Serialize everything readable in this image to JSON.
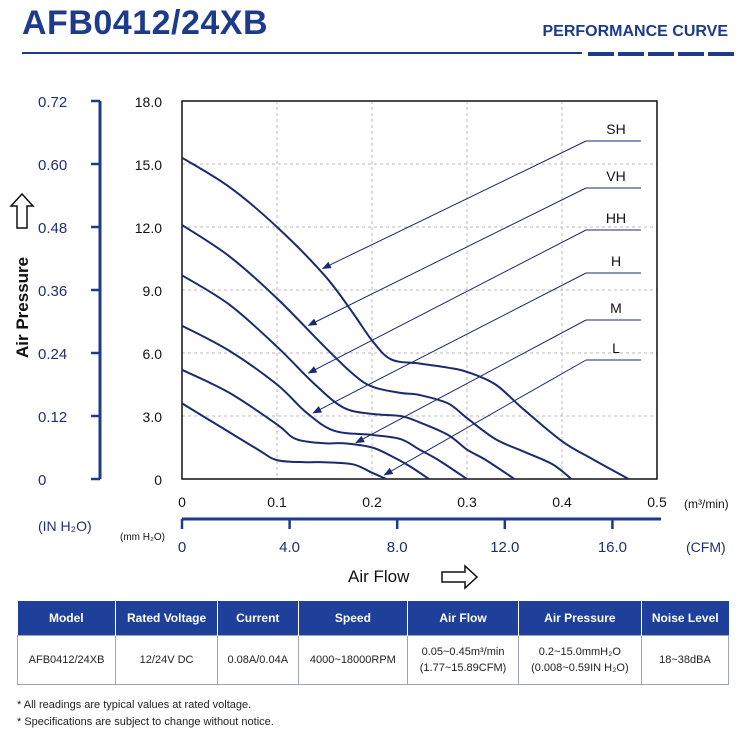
{
  "header": {
    "title": "AFB0412/24XB",
    "subtitle": "PERFORMANCE CURVE"
  },
  "chart_data": {
    "type": "line",
    "xlabel": "Air Flow",
    "ylabel": "Air Pressure",
    "x_unit": "(m³/min)",
    "x2_unit": "(CFM)",
    "y_unit": "(mm H₂O)",
    "y2_unit": "(IN H₂O)",
    "xlim": [
      0,
      0.5
    ],
    "ylim": [
      0,
      18
    ],
    "grid": true,
    "x_ticks": [
      "0",
      "0.1",
      "0.2",
      "0.3",
      "0.4",
      "0.5"
    ],
    "y_ticks": [
      "0",
      "3.0",
      "6.0",
      "9.0",
      "12.0",
      "15.0",
      "18.0"
    ],
    "x2_ticks": [
      "0",
      "4.0",
      "8.0",
      "12.0",
      "16.0"
    ],
    "y2_ticks": [
      "0",
      "0.12",
      "0.24",
      "0.36",
      "0.48",
      "0.60",
      "0.72"
    ],
    "series": [
      {
        "name": "SH",
        "x": [
          0,
          0.05,
          0.1,
          0.15,
          0.18,
          0.2,
          0.22,
          0.25,
          0.28,
          0.3,
          0.33,
          0.36,
          0.4,
          0.43,
          0.47
        ],
        "y": [
          15.3,
          13.9,
          12.0,
          9.7,
          7.9,
          6.6,
          5.7,
          5.5,
          5.3,
          5.1,
          4.5,
          3.3,
          1.8,
          1.0,
          0
        ]
      },
      {
        "name": "VH",
        "x": [
          0,
          0.05,
          0.1,
          0.15,
          0.18,
          0.2,
          0.23,
          0.25,
          0.28,
          0.3,
          0.33,
          0.36,
          0.39,
          0.41
        ],
        "y": [
          12.1,
          10.6,
          8.6,
          6.3,
          5.0,
          4.4,
          4.1,
          4.0,
          3.6,
          2.9,
          1.9,
          1.3,
          0.7,
          0
        ]
      },
      {
        "name": "HH",
        "x": [
          0,
          0.05,
          0.1,
          0.14,
          0.17,
          0.2,
          0.23,
          0.25,
          0.28,
          0.3,
          0.32,
          0.35
        ],
        "y": [
          9.7,
          8.3,
          6.3,
          4.5,
          3.4,
          3.1,
          3.0,
          2.7,
          2.1,
          1.4,
          0.9,
          0
        ]
      },
      {
        "name": "H",
        "x": [
          0,
          0.05,
          0.1,
          0.13,
          0.16,
          0.2,
          0.23,
          0.25,
          0.27,
          0.3
        ],
        "y": [
          7.3,
          6.1,
          4.5,
          3.2,
          2.3,
          2.1,
          1.9,
          1.4,
          0.9,
          0
        ]
      },
      {
        "name": "M",
        "x": [
          0,
          0.05,
          0.1,
          0.12,
          0.15,
          0.17,
          0.2,
          0.22,
          0.24,
          0.26
        ],
        "y": [
          5.2,
          4.1,
          2.6,
          1.9,
          1.7,
          1.7,
          1.5,
          1.1,
          0.6,
          0
        ]
      },
      {
        "name": "L",
        "x": [
          0,
          0.04,
          0.08,
          0.1,
          0.13,
          0.15,
          0.18,
          0.2,
          0.215
        ],
        "y": [
          3.6,
          2.5,
          1.4,
          0.9,
          0.8,
          0.8,
          0.7,
          0.3,
          0
        ]
      }
    ],
    "legend_labels": [
      "SH",
      "VH",
      "HH",
      "H",
      "M",
      "L"
    ],
    "colors": {
      "line": "#1c2a6e",
      "axis": "#1e3a8a",
      "grid": "#bbbbbb",
      "label": "#1f2f73"
    }
  },
  "table": {
    "headers": [
      "Model",
      "Rated Voltage",
      "Current",
      "Speed",
      "Air Flow",
      "Air Pressure",
      "Noise Level"
    ],
    "row": {
      "model": "AFB0412/24XB",
      "voltage": "12/24V DC",
      "current": "0.08A/0.04A",
      "speed": "4000~18000RPM",
      "airflow_1": "0.05~0.45m³/min",
      "airflow_2": "(1.77~15.89CFM)",
      "pressure_1": "0.2~15.0mmH₂O",
      "pressure_2": "(0.008~0.59IN H₂O)",
      "noise": "18~38dBA"
    }
  },
  "notes": [
    "* All readings are typical values at rated voltage.",
    "* Specifications are subject to change without notice."
  ]
}
